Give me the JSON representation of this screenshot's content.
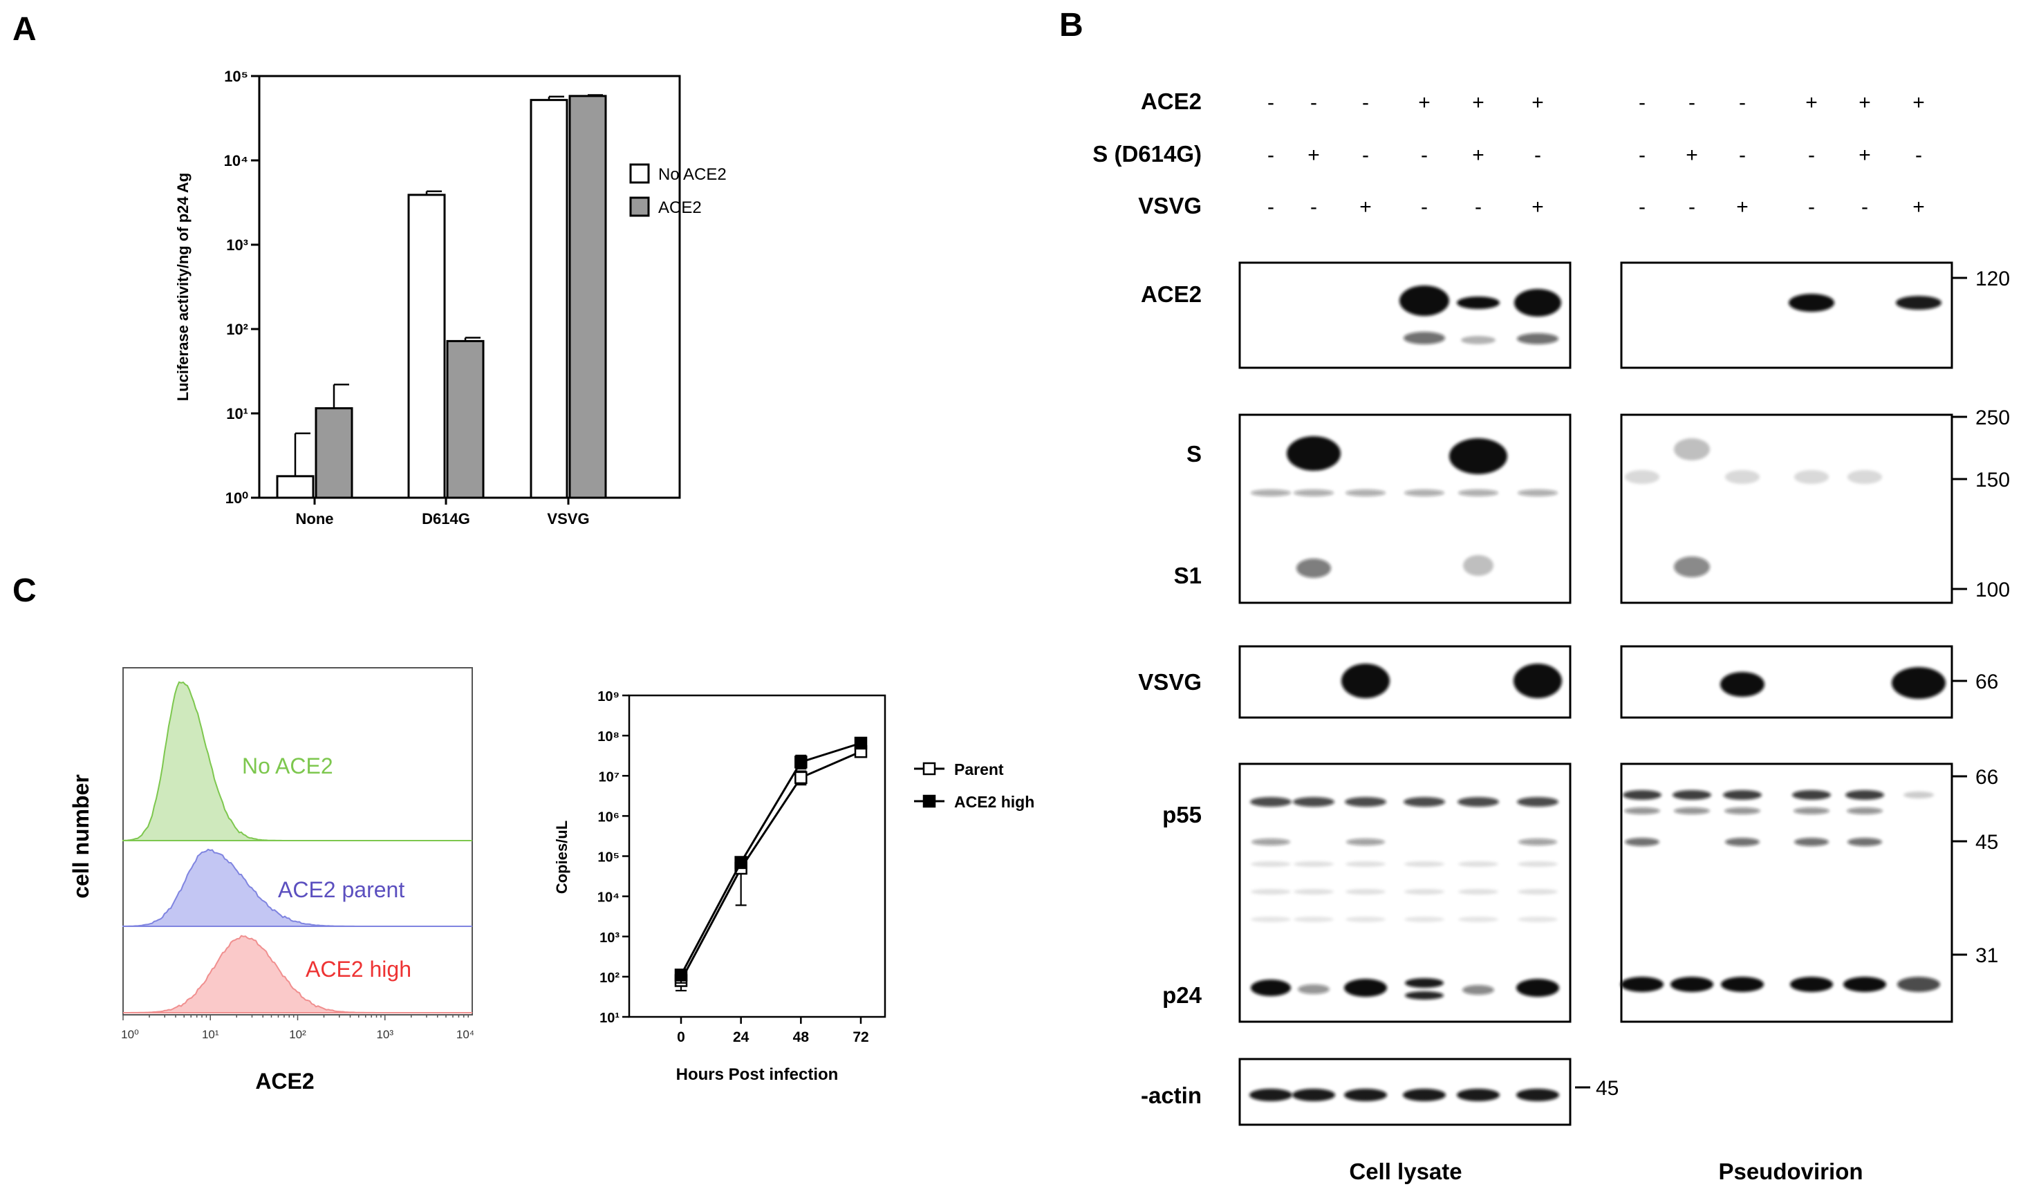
{
  "panels": {
    "A": "A",
    "B": "B",
    "C": "C"
  },
  "chart_data": [
    {
      "type": "bar",
      "ylabel": "Luciferase activity/ng of p24 Ag",
      "yscale": "log",
      "ylim": [
        1,
        100000
      ],
      "yticks": [
        "10⁰",
        "10¹",
        "10²",
        "10³",
        "10⁴",
        "10⁵"
      ],
      "categories": [
        "None",
        "D614G",
        "VSVG"
      ],
      "legend_position": "right",
      "series": [
        {
          "name": "No ACE2",
          "color": "#ffffff",
          "values": [
            1.8,
            3900,
            52000
          ],
          "errors": [
            5.8,
            4300,
            57000
          ]
        },
        {
          "name": "ACE2",
          "color": "#9a9a9a",
          "values": [
            11.5,
            72,
            58000
          ],
          "errors": [
            22,
            79,
            59500
          ]
        }
      ]
    },
    {
      "type": "line",
      "xlabel": "Hours Post infection",
      "ylabel": "Copies/uL",
      "yscale": "log",
      "ylim": [
        10,
        1000000000
      ],
      "yticks": [
        "10¹",
        "10²",
        "10³",
        "10⁴",
        "10⁵",
        "10⁶",
        "10⁷",
        "10⁸",
        "10⁹"
      ],
      "x": [
        0,
        24,
        48,
        72
      ],
      "legend_position": "right",
      "series": [
        {
          "name": "Parent",
          "marker": "open-square",
          "values": [
            80,
            50000,
            9000000,
            40000000
          ],
          "err_low": [
            45,
            6000,
            6000000,
            30000000
          ],
          "err_high": [
            110,
            80000,
            13000000,
            52000000
          ]
        },
        {
          "name": "ACE2 high",
          "marker": "filled-square",
          "values": [
            110,
            70000,
            22000000,
            65000000
          ],
          "err_low": [
            70,
            50000,
            15000000,
            55000000
          ],
          "err_high": [
            140,
            95000,
            32000000,
            78000000
          ]
        }
      ]
    }
  ],
  "blot": {
    "row_headers": [
      "ACE2",
      "S (D614G)",
      "VSVG"
    ],
    "conditions": {
      "ACE2": [
        "-",
        "-",
        "-",
        "+",
        "+",
        "+"
      ],
      "S (D614G)": [
        "-",
        "+",
        "-",
        "-",
        "+",
        "-"
      ],
      "VSVG": [
        "-",
        "-",
        "+",
        "-",
        "-",
        "+"
      ]
    },
    "band_labels": {
      "ace2": "ACE2",
      "s": "S",
      "s1": "S1",
      "vsvg": "VSVG",
      "p55": "p55",
      "p24": "p24",
      "actin": "-actin"
    },
    "mw_markers": {
      "ace2": [
        "120"
      ],
      "s": [
        "250",
        "150",
        "100"
      ],
      "vsvg": [
        "66"
      ],
      "gag": [
        "66",
        "45",
        "31"
      ],
      "actin": [
        "45"
      ]
    },
    "group_labels": {
      "lysate": "Cell lysate",
      "pseudovirion": "Pseudovirion"
    }
  },
  "flow": {
    "ylabel": "cell number",
    "xlabel": "ACE2",
    "xticks": [
      "10⁰",
      "10¹",
      "10²",
      "10³",
      "10⁴"
    ],
    "populations": [
      {
        "label": "No ACE2",
        "color": "#7dc74e"
      },
      {
        "label": "ACE2 parent",
        "color": "#5b4fbf"
      },
      {
        "label": "ACE2 high",
        "color": "#ee3333"
      }
    ]
  }
}
